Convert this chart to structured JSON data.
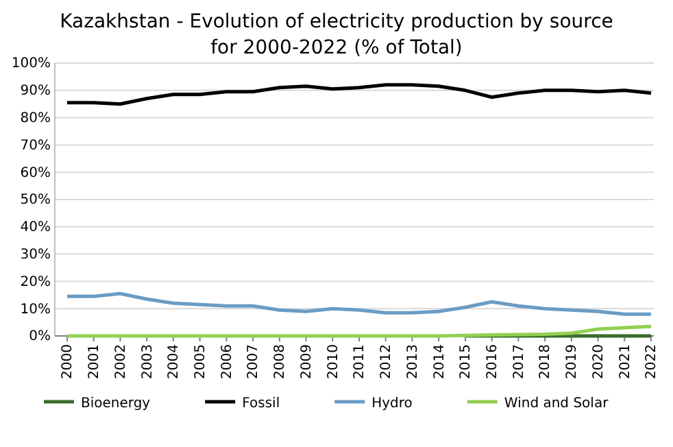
{
  "chart_data": {
    "type": "line",
    "title": "Kazakhstan - Evolution of electricity production  by source for 2000-2022 (% of Total)",
    "categories": [
      "2000",
      "2001",
      "2002",
      "2003",
      "2004",
      "2005",
      "2006",
      "2007",
      "2008",
      "2009",
      "2010",
      "2011",
      "2012",
      "2013",
      "2014",
      "2015",
      "2016",
      "2017",
      "2018",
      "2019",
      "2020",
      "2021",
      "2022"
    ],
    "series": [
      {
        "name": "Bioenergy",
        "color": "#3a6b2a",
        "values": [
          null,
          null,
          null,
          null,
          null,
          null,
          null,
          null,
          null,
          null,
          null,
          null,
          null,
          null,
          null,
          0,
          0,
          0,
          0,
          0,
          0,
          0,
          0
        ]
      },
      {
        "name": "Fossil",
        "color": "#000000",
        "values": [
          85.5,
          85.5,
          85,
          87,
          88.5,
          88.5,
          89.5,
          89.5,
          91,
          91.5,
          90.5,
          91,
          92,
          92,
          91.5,
          90,
          87.5,
          89,
          90,
          90,
          89.5,
          90,
          89
        ]
      },
      {
        "name": "Hydro",
        "color": "#6a9cc4",
        "values": [
          14.5,
          14.5,
          15.5,
          13.5,
          12,
          11.5,
          11,
          11,
          9.5,
          9,
          10,
          9.5,
          8.5,
          8.5,
          9,
          10.5,
          12.5,
          11,
          10,
          9.5,
          9,
          8,
          8
        ]
      },
      {
        "name": "Wind and Solar",
        "color": "#92d050",
        "values": [
          0,
          0,
          0,
          0,
          0,
          0,
          0,
          0,
          0,
          0,
          0,
          0,
          0,
          0,
          0,
          0.2,
          0.4,
          0.5,
          0.6,
          1,
          2.5,
          3,
          3.5
        ]
      }
    ],
    "ylim": [
      0,
      100
    ],
    "yticks": [
      {
        "value": 0,
        "label": "0%"
      },
      {
        "value": 10,
        "label": "10%"
      },
      {
        "value": 20,
        "label": "20%"
      },
      {
        "value": 30,
        "label": "30%"
      },
      {
        "value": 40,
        "label": "40%"
      },
      {
        "value": 50,
        "label": "50%"
      },
      {
        "value": 60,
        "label": "60%"
      },
      {
        "value": 70,
        "label": "70%"
      },
      {
        "value": 80,
        "label": "80%"
      },
      {
        "value": 90,
        "label": "90%"
      },
      {
        "value": 100,
        "label": "100%"
      }
    ],
    "grid": "y",
    "legend": "bottom",
    "marker": "none",
    "line_style": "solid"
  }
}
